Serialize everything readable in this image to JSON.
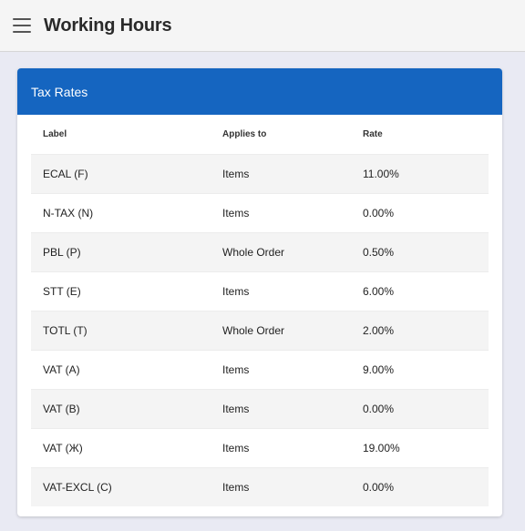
{
  "appbar": {
    "title": "Working Hours"
  },
  "card": {
    "title": "Tax Rates"
  },
  "table": {
    "columns": [
      "Label",
      "Applies to",
      "Rate"
    ],
    "rows": [
      {
        "label": "ECAL (F)",
        "applies_to": "Items",
        "rate": "11.00%"
      },
      {
        "label": "N-TAX (N)",
        "applies_to": "Items",
        "rate": "0.00%"
      },
      {
        "label": "PBL (P)",
        "applies_to": "Whole Order",
        "rate": "0.50%"
      },
      {
        "label": "STT (E)",
        "applies_to": "Items",
        "rate": "6.00%"
      },
      {
        "label": "TOTL (T)",
        "applies_to": "Whole Order",
        "rate": "2.00%"
      },
      {
        "label": "VAT (A)",
        "applies_to": "Items",
        "rate": "9.00%"
      },
      {
        "label": "VAT (B)",
        "applies_to": "Items",
        "rate": "0.00%"
      },
      {
        "label": "VAT (Ж)",
        "applies_to": "Items",
        "rate": "19.00%"
      },
      {
        "label": "VAT-EXCL (C)",
        "applies_to": "Items",
        "rate": "0.00%"
      }
    ]
  },
  "colors": {
    "header": "#1565c0",
    "background": "#e9eaf3"
  },
  "icons": {
    "menu": "hamburger-menu-icon"
  }
}
